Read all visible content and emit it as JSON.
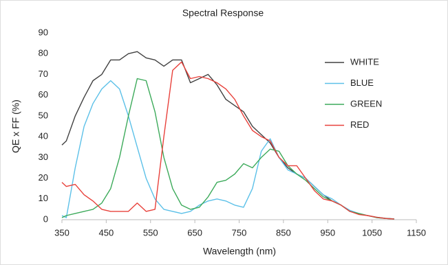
{
  "chart_data": {
    "type": "line",
    "title": "Spectral Response",
    "x_label": "Wavelength (nm)",
    "y_label": "QE x FF (%)",
    "x": [
      350,
      360,
      380,
      400,
      420,
      440,
      460,
      480,
      500,
      520,
      540,
      560,
      580,
      600,
      620,
      640,
      660,
      680,
      700,
      720,
      740,
      760,
      780,
      800,
      820,
      840,
      860,
      880,
      900,
      920,
      940,
      960,
      980,
      1000,
      1020,
      1040,
      1060,
      1080,
      1100
    ],
    "series": [
      {
        "name": "WHITE",
        "color": "#404040",
        "values": [
          36,
          38,
          50,
          59,
          67,
          70,
          77,
          77,
          80,
          81,
          78,
          77,
          74,
          77,
          77,
          66,
          68,
          70,
          65,
          58,
          55,
          52,
          45,
          41,
          37,
          30,
          25,
          22,
          20,
          16,
          12,
          9,
          7,
          4,
          3,
          2,
          1.2,
          0.7,
          0.4
        ]
      },
      {
        "name": "BLUE",
        "color": "#5bc0e8",
        "values": [
          2,
          1,
          25,
          45,
          56,
          63,
          67,
          63,
          50,
          35,
          20,
          10,
          5,
          4,
          3,
          4,
          7,
          9,
          10,
          9,
          7,
          6,
          15,
          33,
          39,
          30,
          24,
          22,
          20,
          16,
          12,
          10,
          7,
          4.5,
          3,
          2,
          1,
          0.6,
          0.3
        ]
      },
      {
        "name": "GREEN",
        "color": "#3caa5a",
        "values": [
          1,
          2,
          3,
          4,
          5,
          8,
          15,
          30,
          50,
          68,
          67,
          52,
          30,
          15,
          7,
          5,
          6,
          11,
          18,
          19,
          22,
          27,
          25,
          30,
          34,
          33,
          26,
          22,
          19,
          15,
          11,
          9,
          7,
          4,
          3,
          2,
          1,
          0.6,
          0.3
        ]
      },
      {
        "name": "RED",
        "color": "#e8403a",
        "values": [
          18,
          16,
          17,
          12,
          9,
          5,
          4,
          4,
          4,
          8,
          4,
          5,
          40,
          72,
          76,
          68,
          69,
          68,
          66,
          63,
          58,
          50,
          43,
          40,
          38,
          30,
          26,
          26,
          20,
          14,
          10,
          9,
          7,
          4,
          2.5,
          2,
          1.2,
          0.6,
          0.3
        ]
      }
    ],
    "xlim": [
      350,
      1150
    ],
    "xticks": [
      350,
      450,
      550,
      650,
      750,
      850,
      950,
      1050,
      1150
    ],
    "ylim": [
      0,
      90
    ],
    "yticks": [
      0,
      10,
      20,
      30,
      40,
      50,
      60,
      70,
      80,
      90
    ],
    "grid": false
  }
}
